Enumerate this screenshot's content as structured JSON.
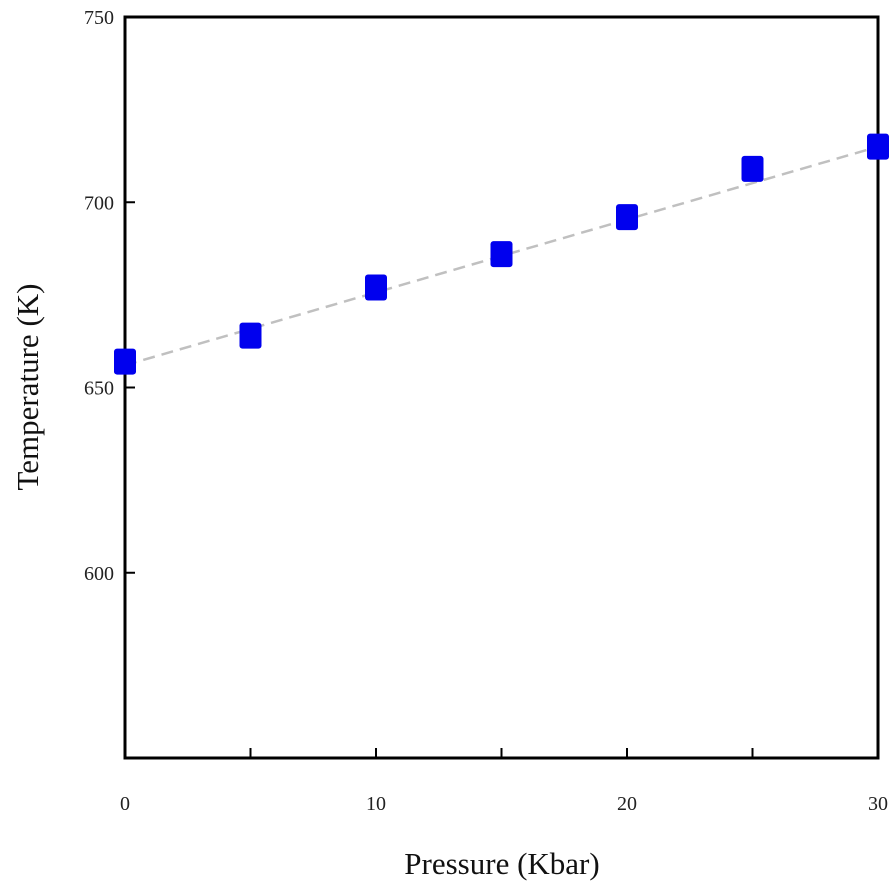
{
  "chart_data": {
    "type": "scatter",
    "xlabel": "Pressure (Kbar)",
    "ylabel": "Temperature (K)",
    "xlim": [
      0,
      30
    ],
    "ylim": [
      550,
      750
    ],
    "xticks": [
      0,
      10,
      20,
      30
    ],
    "yticks": [
      600,
      650,
      700,
      750
    ],
    "grid": false,
    "marker": "square",
    "marker_color": "#0000ee",
    "fit_line_color": "#c0c0c0",
    "fit_line_style": "dashed",
    "series": [
      {
        "x": [
          0,
          5,
          10,
          15,
          20,
          25,
          30
        ],
        "y": [
          657,
          664,
          677,
          686,
          696,
          709,
          715
        ]
      }
    ],
    "fit_line": {
      "x": [
        0,
        30
      ],
      "y": [
        656,
        715
      ]
    }
  }
}
